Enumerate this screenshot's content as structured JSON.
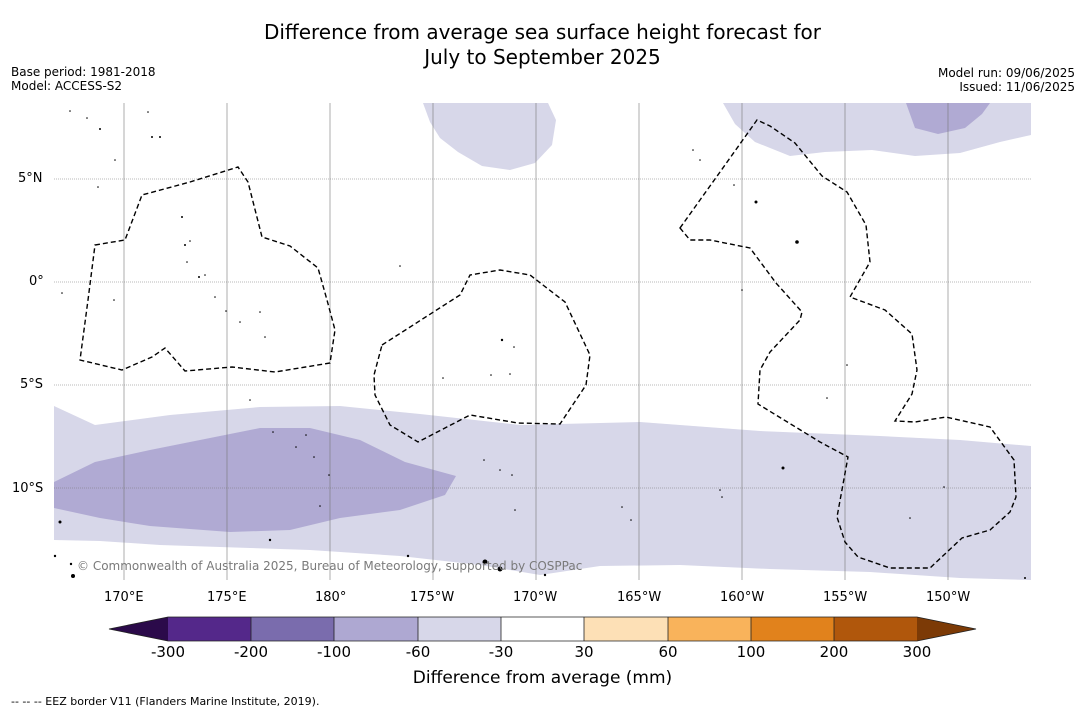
{
  "title_line1": "Difference from average sea surface height forecast for",
  "title_line2": "July to September 2025",
  "meta_left": {
    "base_period": "Base period: 1981-2018",
    "model": "Model: ACCESS-S2"
  },
  "meta_right": {
    "model_run": "Model run: 09/06/2025",
    "issued": "Issued: 11/06/2025"
  },
  "lat_labels": [
    "5°N",
    "0°",
    "5°S",
    "10°S"
  ],
  "lon_labels": [
    "170°E",
    "175°E",
    "180°",
    "175°W",
    "170°W",
    "165°W",
    "160°W",
    "155°W",
    "150°W"
  ],
  "credit": "© Commonwealth of Australia 2025, Bureau of Meteorology, supported by COSPPac",
  "colorbar": {
    "label": "Difference from average (mm)",
    "ticks": [
      "-300",
      "-200",
      "-100",
      "-60",
      "-30",
      "30",
      "60",
      "100",
      "200",
      "300"
    ],
    "colors": [
      "#2b0a4a",
      "#54288a",
      "#7a6cad",
      "#aea8d2",
      "#d7d7e9",
      "#ffffff",
      "#fde0b6",
      "#f9b35b",
      "#e1821c",
      "#b0570c",
      "#7c3a06"
    ]
  },
  "legend_note": "-- -- -- EEZ border V11 (Flanders Marine Institute, 2019)."
}
